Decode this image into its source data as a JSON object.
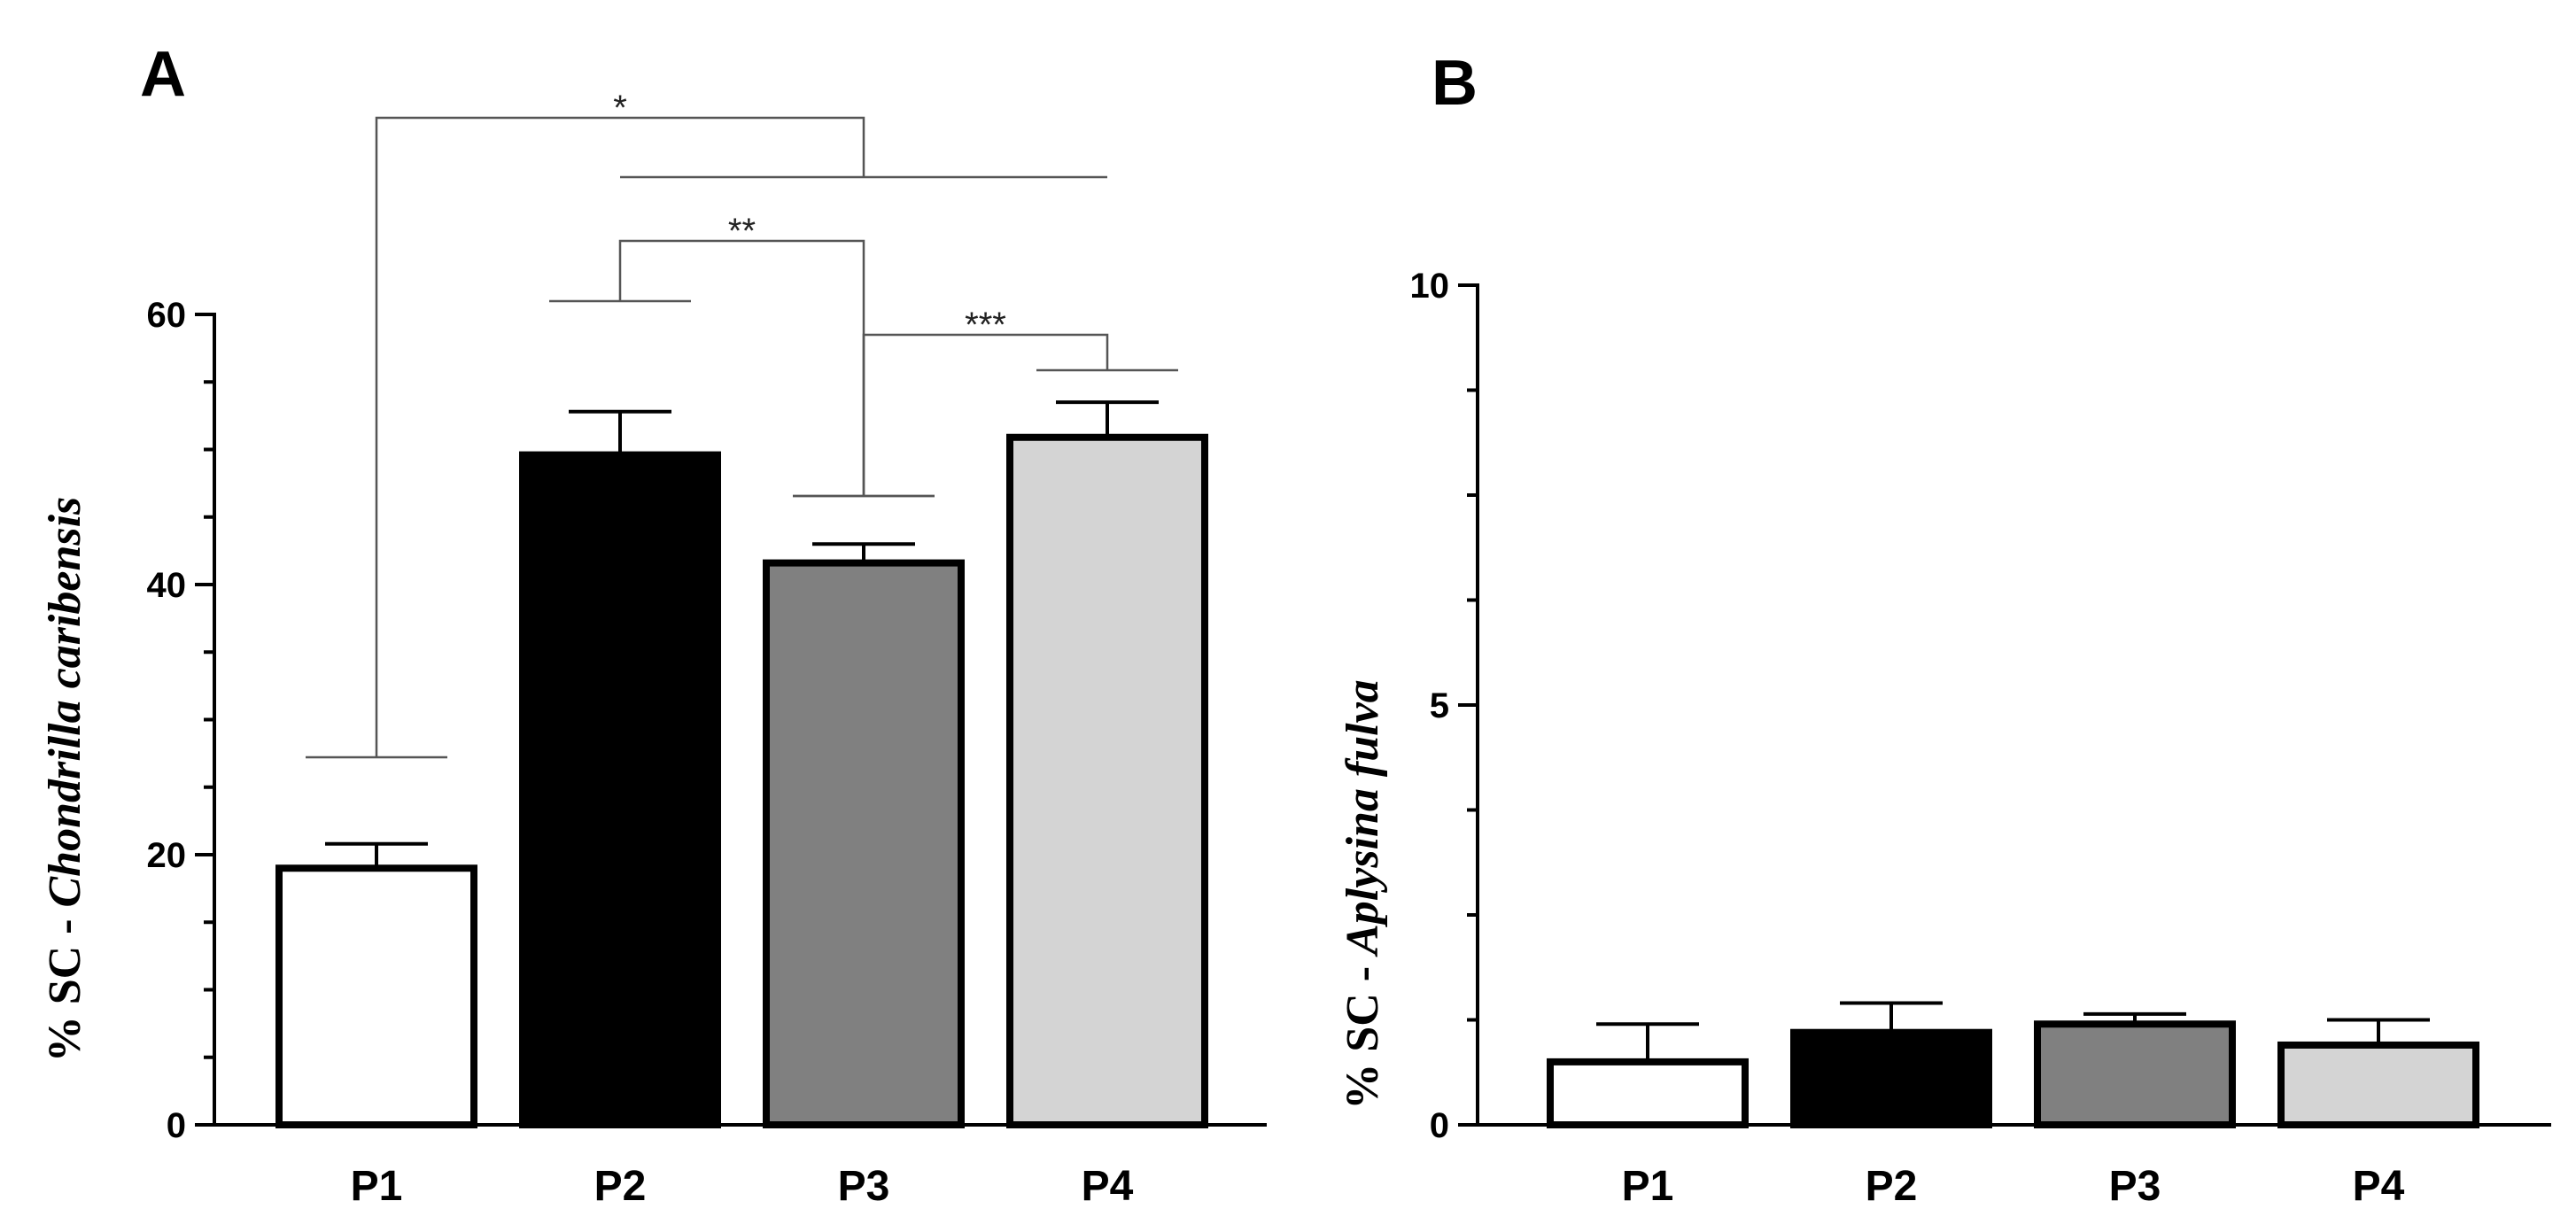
{
  "chart_data": [
    {
      "type": "bar",
      "panel_label": "A",
      "ylabel_prefix": "% SC - ",
      "ylabel_species": "Chondrilla caribensis",
      "ylim": [
        0,
        60
      ],
      "yticks": [
        0,
        20,
        40,
        60
      ],
      "categories": [
        "P1",
        "P2",
        "P3",
        "P4"
      ],
      "values": [
        19.0,
        49.6,
        41.6,
        50.9
      ],
      "errors": [
        1.8,
        3.2,
        1.4,
        2.6
      ],
      "colors": [
        "#ffffff",
        "#000000",
        "#808080",
        "#d4d4d4"
      ],
      "significance": [
        {
          "label": "*",
          "left_group": [
            "P1"
          ],
          "right_group": [
            "P2",
            "P3",
            "P4"
          ]
        },
        {
          "label": "**",
          "left_group": [
            "P2"
          ],
          "right_group": [
            "P3"
          ]
        },
        {
          "label": "***",
          "left_group": [
            "P3"
          ],
          "right_group": [
            "P4"
          ]
        }
      ]
    },
    {
      "type": "bar",
      "panel_label": "B",
      "ylabel_prefix": "% SC - ",
      "ylabel_species": "Aplysina fulva",
      "ylim": [
        0,
        10
      ],
      "yticks": [
        0,
        5,
        10
      ],
      "categories": [
        "P1",
        "P2",
        "P3",
        "P4"
      ],
      "values": [
        0.75,
        1.1,
        1.2,
        0.95
      ],
      "errors": [
        0.45,
        0.35,
        0.12,
        0.3
      ],
      "colors": [
        "#ffffff",
        "#000000",
        "#808080",
        "#d4d4d4"
      ]
    }
  ]
}
